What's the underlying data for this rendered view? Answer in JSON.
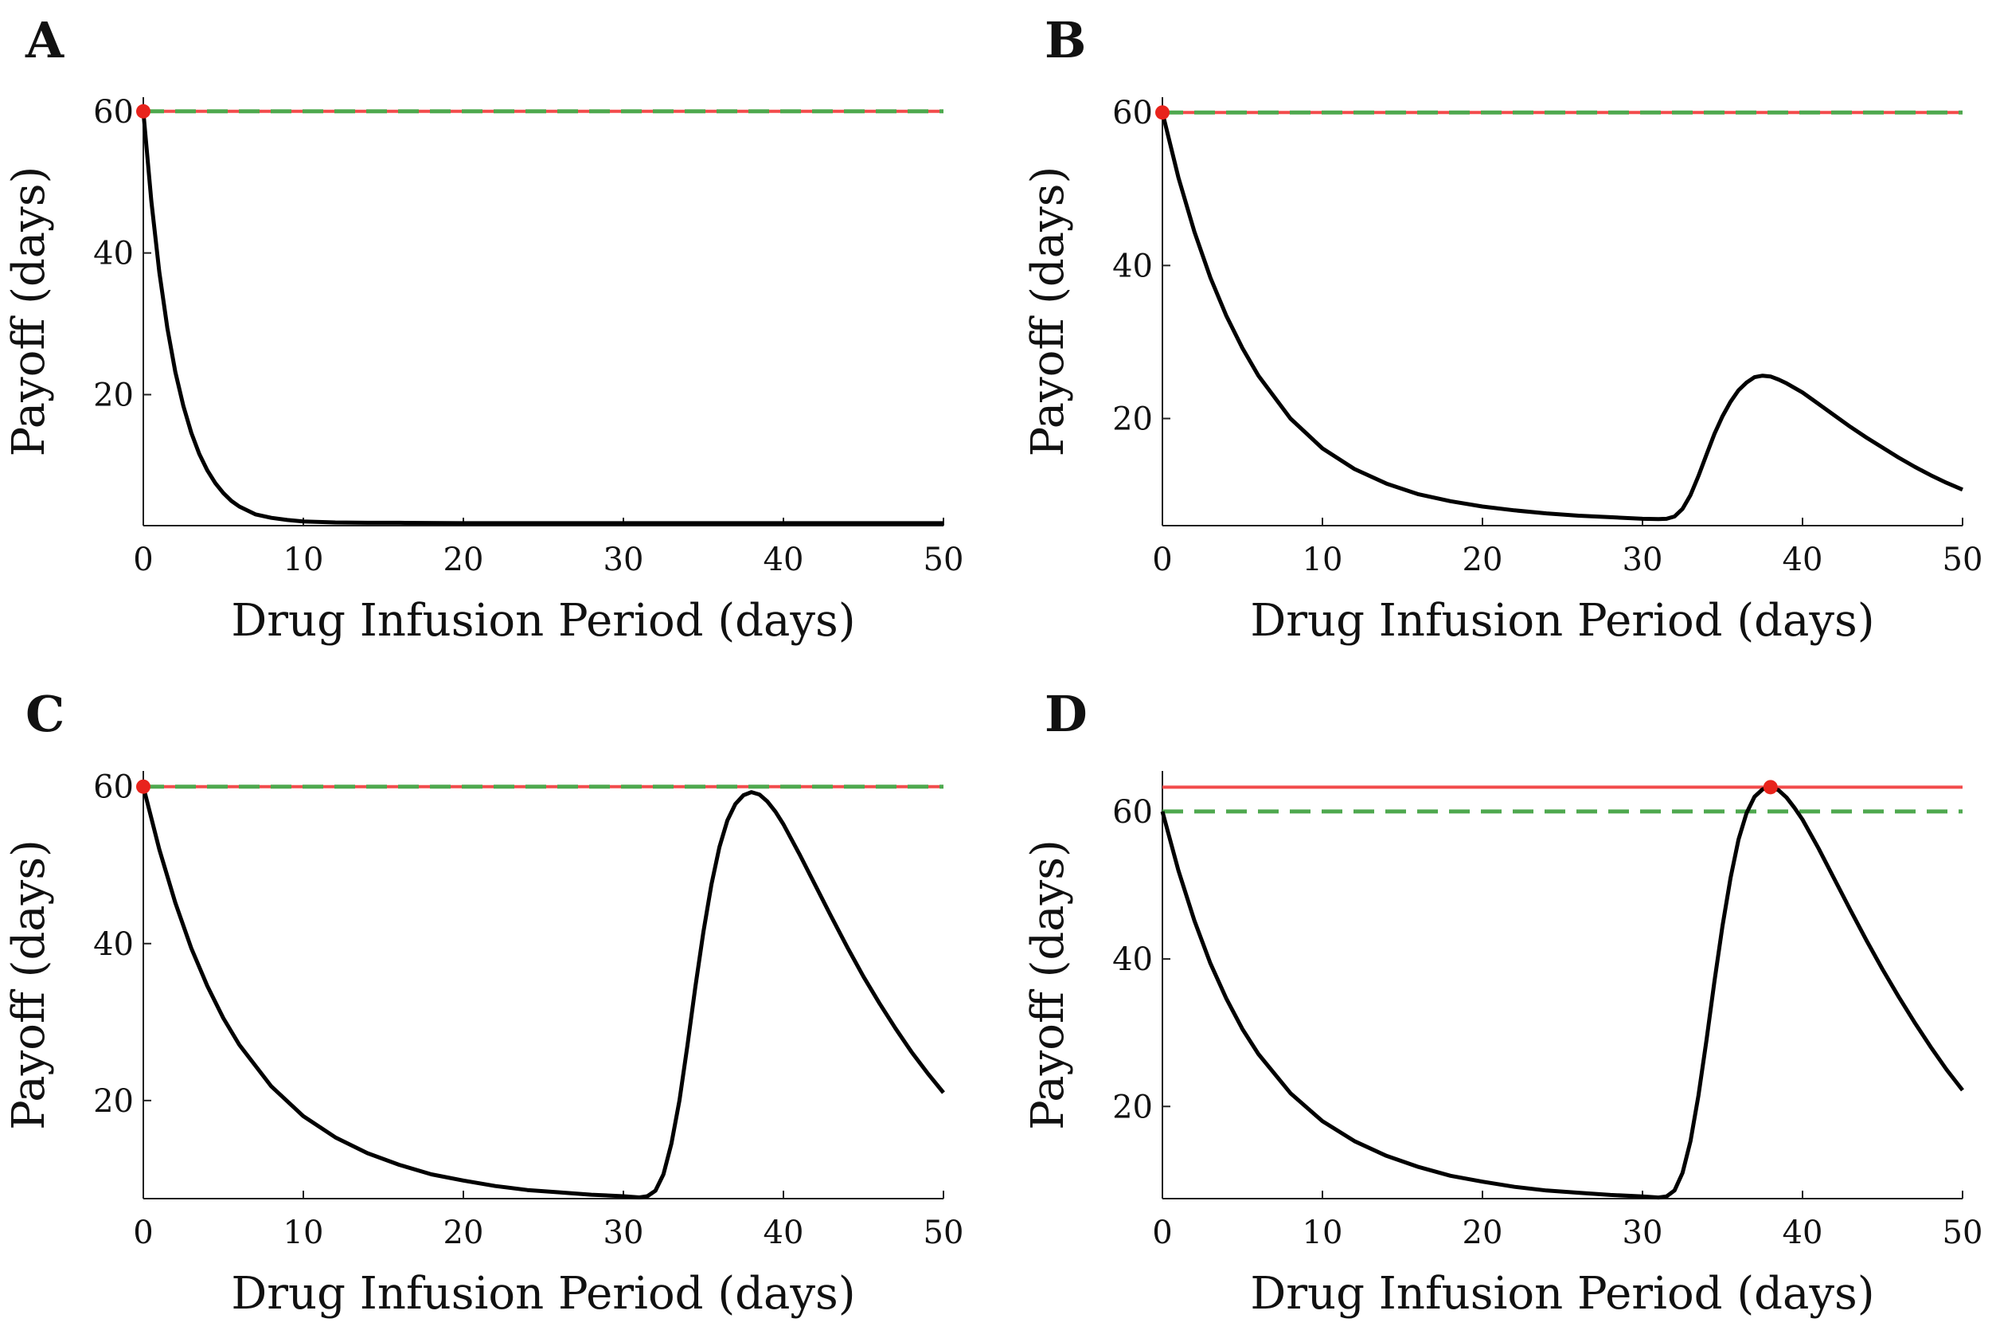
{
  "figure": {
    "panels": [
      {
        "label": "A",
        "xlabel": "Drug Infusion Period (days)",
        "ylabel": "Payoff (days)"
      },
      {
        "label": "B",
        "xlabel": "Drug Infusion Period (days)",
        "ylabel": "Payoff (days)"
      },
      {
        "label": "C",
        "xlabel": "Drug Infusion Period (days)",
        "ylabel": "Payoff (days)"
      },
      {
        "label": "D",
        "xlabel": "Drug Infusion Period (days)",
        "ylabel": "Payoff (days)"
      }
    ]
  },
  "colors": {
    "curve": "#000000",
    "optimum_line": "#f24b4b",
    "baseline_line": "#4ea84e",
    "optimum_marker": "#e8231c"
  },
  "chart_data": [
    {
      "type": "line",
      "panel": "A",
      "xlabel": "Drug Infusion Period (days)",
      "ylabel": "Payoff (days)",
      "xlim": [
        0,
        50
      ],
      "ylim": [
        1.5,
        62
      ],
      "xticks": [
        0,
        10,
        20,
        30,
        40,
        50
      ],
      "yticks": [
        20,
        40,
        60
      ],
      "series": [
        {
          "name": "payoff",
          "style": "solid",
          "color": "#000000",
          "x": [
            0,
            0.5,
            1,
            1.5,
            2,
            2.5,
            3,
            3.5,
            4,
            4.5,
            5,
            5.5,
            6,
            7,
            8,
            9,
            10,
            12,
            14,
            16,
            20,
            25,
            30,
            35,
            40,
            45,
            50
          ],
          "y": [
            60,
            47.3,
            37.3,
            29.4,
            23.2,
            18.4,
            14.6,
            11.6,
            9.3,
            7.5,
            6.1,
            5.0,
            4.2,
            3.1,
            2.6,
            2.3,
            2.1,
            1.95,
            1.9,
            1.9,
            1.85,
            1.85,
            1.85,
            1.85,
            1.85,
            1.85,
            1.85
          ]
        },
        {
          "name": "maximum payoff",
          "style": "solid",
          "color": "#f24b4b",
          "x": [
            0,
            50
          ],
          "y": [
            60,
            60
          ]
        },
        {
          "name": "no-treatment payoff",
          "style": "dashed",
          "color": "#4ea84e",
          "x": [
            0,
            50
          ],
          "y": [
            60,
            60
          ]
        }
      ],
      "markers": [
        {
          "name": "optimum",
          "x": 0,
          "y": 60
        }
      ]
    },
    {
      "type": "line",
      "panel": "B",
      "xlabel": "Drug Infusion Period (days)",
      "ylabel": "Payoff (days)",
      "xlim": [
        0,
        50
      ],
      "ylim": [
        6,
        62
      ],
      "xticks": [
        0,
        10,
        20,
        30,
        40,
        50
      ],
      "yticks": [
        20,
        40,
        60
      ],
      "series": [
        {
          "name": "payoff",
          "style": "solid",
          "color": "#000000",
          "x": [
            0,
            1,
            2,
            3,
            4,
            5,
            6,
            8,
            10,
            12,
            14,
            16,
            18,
            20,
            22,
            24,
            26,
            28,
            30,
            31,
            31.5,
            32,
            32.5,
            33,
            33.5,
            34,
            34.5,
            35,
            35.5,
            36,
            36.5,
            37,
            37.5,
            38,
            38.5,
            39,
            40,
            41,
            42,
            43,
            44,
            45,
            46,
            47,
            48,
            49,
            50
          ],
          "y": [
            60,
            51.5,
            44.4,
            38.4,
            33.4,
            29.2,
            25.6,
            20.0,
            16.1,
            13.4,
            11.5,
            10.1,
            9.2,
            8.5,
            8.0,
            7.6,
            7.3,
            7.1,
            6.9,
            6.85,
            6.9,
            7.2,
            8.2,
            10.0,
            12.5,
            15.3,
            18.0,
            20.3,
            22.2,
            23.7,
            24.7,
            25.4,
            25.6,
            25.5,
            25.1,
            24.6,
            23.4,
            21.9,
            20.4,
            18.9,
            17.5,
            16.2,
            14.9,
            13.7,
            12.6,
            11.6,
            10.7
          ]
        },
        {
          "name": "maximum payoff",
          "style": "solid",
          "color": "#f24b4b",
          "x": [
            0,
            50
          ],
          "y": [
            60,
            60
          ]
        },
        {
          "name": "no-treatment payoff",
          "style": "dashed",
          "color": "#4ea84e",
          "x": [
            0,
            50
          ],
          "y": [
            60,
            60
          ]
        }
      ],
      "markers": [
        {
          "name": "optimum",
          "x": 0,
          "y": 60
        }
      ]
    },
    {
      "type": "line",
      "panel": "C",
      "xlabel": "Drug Infusion Period (days)",
      "ylabel": "Payoff (days)",
      "xlim": [
        0,
        50
      ],
      "ylim": [
        7.5,
        62
      ],
      "xticks": [
        0,
        10,
        20,
        30,
        40,
        50
      ],
      "yticks": [
        20,
        40,
        60
      ],
      "series": [
        {
          "name": "payoff",
          "style": "solid",
          "color": "#000000",
          "x": [
            0,
            1,
            2,
            3,
            4,
            5,
            6,
            8,
            10,
            12,
            14,
            16,
            18,
            20,
            22,
            24,
            26,
            28,
            30,
            31,
            31.5,
            32,
            32.5,
            33,
            33.5,
            34,
            34.5,
            35,
            35.5,
            36,
            36.5,
            37,
            37.5,
            38,
            38.5,
            39,
            39.5,
            40,
            41,
            42,
            43,
            44,
            45,
            46,
            47,
            48,
            49,
            50
          ],
          "y": [
            60,
            52.0,
            45.2,
            39.4,
            34.6,
            30.5,
            27.1,
            21.8,
            18.0,
            15.3,
            13.3,
            11.8,
            10.6,
            9.8,
            9.1,
            8.6,
            8.3,
            8.0,
            7.8,
            7.65,
            7.8,
            8.5,
            10.6,
            14.5,
            20.0,
            27.0,
            34.5,
            41.5,
            47.5,
            52.3,
            55.7,
            57.8,
            58.9,
            59.3,
            59.0,
            58.1,
            56.8,
            55.2,
            51.4,
            47.4,
            43.4,
            39.5,
            35.8,
            32.4,
            29.2,
            26.2,
            23.5,
            21.0
          ]
        },
        {
          "name": "maximum payoff",
          "style": "solid",
          "color": "#f24b4b",
          "x": [
            0,
            50
          ],
          "y": [
            60,
            60
          ]
        },
        {
          "name": "no-treatment payoff",
          "style": "dashed",
          "color": "#4ea84e",
          "x": [
            0,
            50
          ],
          "y": [
            60,
            60
          ]
        }
      ],
      "markers": [
        {
          "name": "optimum",
          "x": 0,
          "y": 60
        }
      ]
    },
    {
      "type": "line",
      "panel": "D",
      "xlabel": "Drug Infusion Period (days)",
      "ylabel": "Payoff (days)",
      "xlim": [
        0,
        50
      ],
      "ylim": [
        7.5,
        65.5
      ],
      "xticks": [
        0,
        10,
        20,
        30,
        40,
        50
      ],
      "yticks": [
        20,
        40,
        60
      ],
      "series": [
        {
          "name": "payoff",
          "style": "solid",
          "color": "#000000",
          "x": [
            0,
            1,
            2,
            3,
            4,
            5,
            6,
            8,
            10,
            12,
            14,
            16,
            18,
            20,
            22,
            24,
            26,
            28,
            30,
            31,
            31.5,
            32,
            32.5,
            33,
            33.5,
            34,
            34.5,
            35,
            35.5,
            36,
            36.5,
            37,
            37.5,
            38,
            38.5,
            39,
            39.5,
            40,
            41,
            42,
            43,
            44,
            45,
            46,
            47,
            48,
            49,
            50
          ],
          "y": [
            60,
            52.0,
            45.2,
            39.4,
            34.6,
            30.5,
            27.1,
            21.8,
            18.0,
            15.3,
            13.3,
            11.8,
            10.6,
            9.8,
            9.1,
            8.6,
            8.3,
            8.0,
            7.8,
            7.65,
            7.8,
            8.6,
            11.0,
            15.3,
            21.5,
            29.0,
            37.0,
            44.5,
            51.0,
            56.2,
            59.8,
            62.0,
            63.0,
            63.3,
            62.9,
            61.9,
            60.5,
            58.9,
            55.0,
            50.8,
            46.6,
            42.5,
            38.6,
            34.9,
            31.4,
            28.1,
            25.0,
            22.2
          ]
        },
        {
          "name": "maximum payoff",
          "style": "solid",
          "color": "#f24b4b",
          "x": [
            0,
            50
          ],
          "y": [
            63.3,
            63.3
          ]
        },
        {
          "name": "no-treatment payoff",
          "style": "dashed",
          "color": "#4ea84e",
          "x": [
            0,
            50
          ],
          "y": [
            60,
            60
          ]
        }
      ],
      "markers": [
        {
          "name": "optimum",
          "x": 38,
          "y": 63.3
        }
      ]
    }
  ]
}
